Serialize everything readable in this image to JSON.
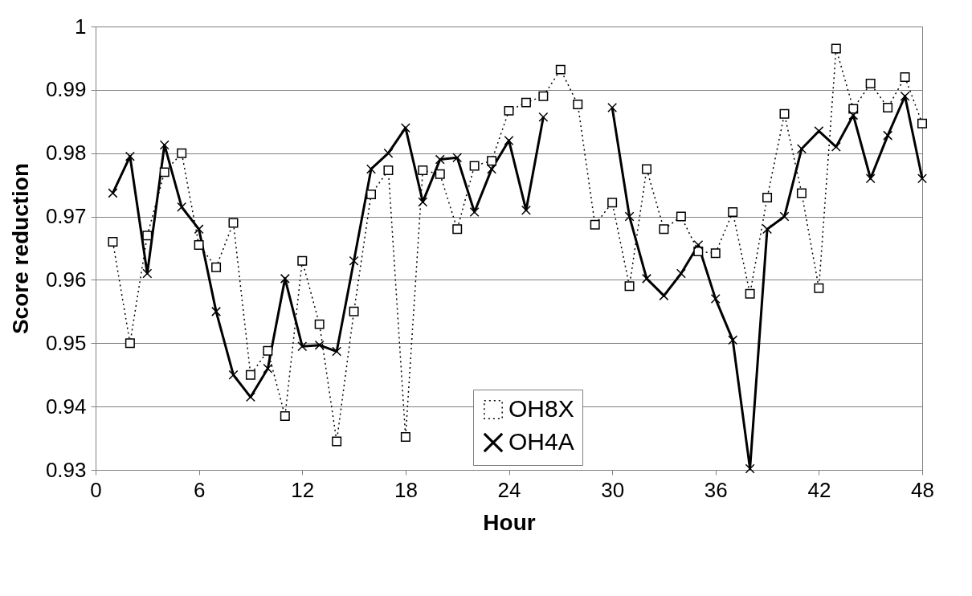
{
  "chart_data": {
    "type": "line",
    "xlabel": "Hour",
    "ylabel": "Score reduction",
    "x": [
      1,
      2,
      3,
      4,
      5,
      6,
      7,
      8,
      9,
      10,
      11,
      12,
      13,
      14,
      15,
      16,
      17,
      18,
      19,
      20,
      21,
      22,
      23,
      24,
      25,
      26,
      27,
      28,
      29,
      30,
      31,
      32,
      33,
      34,
      35,
      36,
      37,
      38,
      39,
      40,
      41,
      42,
      43,
      44,
      45,
      46,
      47,
      48
    ],
    "xlim": [
      0,
      48
    ],
    "xticks": [
      0,
      6,
      12,
      18,
      24,
      30,
      36,
      42,
      48
    ],
    "ylim": [
      0.93,
      1
    ],
    "yticks": [
      0.93,
      0.94,
      0.95,
      0.96,
      0.97,
      0.98,
      0.99,
      1
    ],
    "grid": "y",
    "legend": "bottom",
    "series": [
      {
        "name": "OH8X",
        "color": "#000000",
        "marker": "square",
        "line_style": "dotted",
        "values": [
          0.966,
          0.95,
          0.967,
          0.977,
          0.98,
          0.9655,
          0.962,
          0.969,
          0.945,
          0.9488,
          0.9385,
          0.963,
          0.953,
          0.9345,
          0.955,
          0.9735,
          0.9773,
          0.9352,
          0.9773,
          0.9767,
          0.968,
          0.978,
          0.9788,
          0.9867,
          0.988,
          0.989,
          0.9932,
          0.9877,
          0.9687,
          0.9722,
          0.959,
          0.9775,
          0.968,
          0.97,
          0.9645,
          0.9642,
          0.9707,
          0.9578,
          0.973,
          0.9862,
          0.9737,
          0.9587,
          0.9965,
          0.987,
          0.991,
          0.9872,
          0.992,
          0.9847
        ]
      },
      {
        "name": "OH4A",
        "color": "#000000",
        "marker": "cross",
        "line_style": "solid",
        "values": [
          0.9737,
          0.9795,
          0.961,
          0.9813,
          0.9715,
          0.968,
          0.955,
          0.945,
          0.9415,
          0.946,
          0.9602,
          0.9495,
          0.9497,
          0.9487,
          0.963,
          0.9775,
          0.98,
          0.984,
          0.9723,
          0.979,
          0.9793,
          0.9707,
          0.9775,
          0.982,
          0.971,
          0.9857,
          null,
          null,
          null,
          0.9872,
          0.97,
          0.9602,
          0.9575,
          0.961,
          0.9655,
          0.957,
          0.9505,
          0.9302,
          0.968,
          0.97,
          0.9807,
          0.9835,
          0.981,
          0.986,
          0.976,
          0.9828,
          0.989,
          0.976
        ]
      }
    ]
  }
}
